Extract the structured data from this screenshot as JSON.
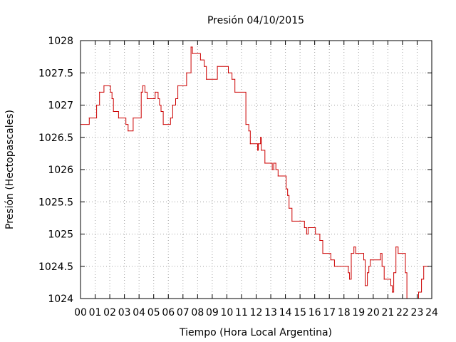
{
  "chart_data": {
    "type": "line",
    "title": "Presión 04/10/2015",
    "xlabel": "Tiempo (Hora Local Argentina)",
    "ylabel": "Presión (Hectopascales)",
    "xlim": [
      0,
      24
    ],
    "ylim": [
      1024,
      1028
    ],
    "grid": true,
    "step": true,
    "line_color": "#cc0000",
    "x_ticks": [
      {
        "v": 0,
        "label": "00"
      },
      {
        "v": 1,
        "label": "01"
      },
      {
        "v": 2,
        "label": "02"
      },
      {
        "v": 3,
        "label": "03"
      },
      {
        "v": 4,
        "label": "04"
      },
      {
        "v": 5,
        "label": "05"
      },
      {
        "v": 6,
        "label": "06"
      },
      {
        "v": 7,
        "label": "07"
      },
      {
        "v": 8,
        "label": "08"
      },
      {
        "v": 9,
        "label": "09"
      },
      {
        "v": 10,
        "label": "10"
      },
      {
        "v": 11,
        "label": "11"
      },
      {
        "v": 12,
        "label": "12"
      },
      {
        "v": 13,
        "label": "13"
      },
      {
        "v": 14,
        "label": "14"
      },
      {
        "v": 15,
        "label": "15"
      },
      {
        "v": 16,
        "label": "16"
      },
      {
        "v": 17,
        "label": "17"
      },
      {
        "v": 18,
        "label": "18"
      },
      {
        "v": 19,
        "label": "19"
      },
      {
        "v": 20,
        "label": "20"
      },
      {
        "v": 21,
        "label": "21"
      },
      {
        "v": 22,
        "label": "22"
      },
      {
        "v": 23,
        "label": "23"
      },
      {
        "v": 24,
        "label": "24"
      }
    ],
    "y_ticks": [
      {
        "v": 1024,
        "label": "1024"
      },
      {
        "v": 1024.5,
        "label": "1024.5"
      },
      {
        "v": 1025,
        "label": "1025"
      },
      {
        "v": 1025.5,
        "label": "1025.5"
      },
      {
        "v": 1026,
        "label": "1026"
      },
      {
        "v": 1026.5,
        "label": "1026.5"
      },
      {
        "v": 1027,
        "label": "1027"
      },
      {
        "v": 1027.5,
        "label": "1027.5"
      },
      {
        "v": 1028,
        "label": "1028"
      }
    ],
    "series": [
      {
        "values": [
          [
            0.0,
            1026.7
          ],
          [
            0.6,
            1026.8
          ],
          [
            1.1,
            1027.0
          ],
          [
            1.3,
            1027.2
          ],
          [
            1.6,
            1027.3
          ],
          [
            2.05,
            1027.2
          ],
          [
            2.15,
            1027.1
          ],
          [
            2.25,
            1026.9
          ],
          [
            2.6,
            1026.8
          ],
          [
            3.1,
            1026.7
          ],
          [
            3.25,
            1026.6
          ],
          [
            3.6,
            1026.8
          ],
          [
            4.15,
            1027.2
          ],
          [
            4.25,
            1027.3
          ],
          [
            4.4,
            1027.2
          ],
          [
            4.55,
            1027.1
          ],
          [
            5.1,
            1027.2
          ],
          [
            5.3,
            1027.1
          ],
          [
            5.4,
            1027.0
          ],
          [
            5.5,
            1026.9
          ],
          [
            5.65,
            1026.7
          ],
          [
            6.15,
            1026.8
          ],
          [
            6.3,
            1027.0
          ],
          [
            6.5,
            1027.1
          ],
          [
            6.65,
            1027.3
          ],
          [
            7.25,
            1027.5
          ],
          [
            7.55,
            1027.9
          ],
          [
            7.65,
            1027.8
          ],
          [
            8.2,
            1027.7
          ],
          [
            8.45,
            1027.6
          ],
          [
            8.6,
            1027.4
          ],
          [
            9.35,
            1027.6
          ],
          [
            10.1,
            1027.5
          ],
          [
            10.35,
            1027.4
          ],
          [
            10.55,
            1027.2
          ],
          [
            11.3,
            1026.7
          ],
          [
            11.5,
            1026.6
          ],
          [
            11.6,
            1026.4
          ],
          [
            12.1,
            1026.3
          ],
          [
            12.15,
            1026.4
          ],
          [
            12.3,
            1026.5
          ],
          [
            12.35,
            1026.3
          ],
          [
            12.6,
            1026.1
          ],
          [
            13.1,
            1026.0
          ],
          [
            13.2,
            1026.1
          ],
          [
            13.35,
            1026.0
          ],
          [
            13.5,
            1025.9
          ],
          [
            14.05,
            1025.7
          ],
          [
            14.15,
            1025.6
          ],
          [
            14.25,
            1025.4
          ],
          [
            14.45,
            1025.2
          ],
          [
            15.3,
            1025.1
          ],
          [
            15.45,
            1025.0
          ],
          [
            15.55,
            1025.1
          ],
          [
            16.05,
            1025.0
          ],
          [
            16.35,
            1024.9
          ],
          [
            16.55,
            1024.7
          ],
          [
            17.1,
            1024.6
          ],
          [
            17.35,
            1024.5
          ],
          [
            18.3,
            1024.4
          ],
          [
            18.38,
            1024.3
          ],
          [
            18.5,
            1024.7
          ],
          [
            18.68,
            1024.8
          ],
          [
            18.8,
            1024.7
          ],
          [
            19.35,
            1024.6
          ],
          [
            19.45,
            1024.2
          ],
          [
            19.6,
            1024.4
          ],
          [
            19.7,
            1024.5
          ],
          [
            19.8,
            1024.6
          ],
          [
            20.5,
            1024.7
          ],
          [
            20.6,
            1024.5
          ],
          [
            20.75,
            1024.3
          ],
          [
            21.2,
            1024.2
          ],
          [
            21.3,
            1024.1
          ],
          [
            21.4,
            1024.4
          ],
          [
            21.55,
            1024.8
          ],
          [
            21.7,
            1024.7
          ],
          [
            22.2,
            1024.4
          ],
          [
            22.3,
            1024.0
          ],
          [
            23.1,
            1024.1
          ],
          [
            23.3,
            1024.3
          ],
          [
            23.45,
            1024.5
          ],
          [
            23.75,
            1024.5
          ]
        ]
      }
    ]
  }
}
